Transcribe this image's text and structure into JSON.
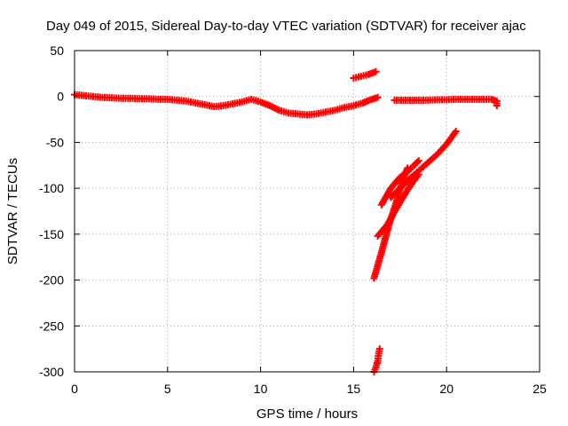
{
  "chart_data": {
    "type": "scatter",
    "title": "Day 049 of 2015, Sidereal Day-to-day VTEC variation (SDTVAR) for receiver ajac",
    "xlabel": "GPS time / hours",
    "ylabel": "SDTVAR / TECUs",
    "xlim": [
      0,
      25
    ],
    "ylim": [
      -300,
      50
    ],
    "xticks": [
      0,
      5,
      10,
      15,
      20,
      25
    ],
    "yticks": [
      -300,
      -250,
      -200,
      -150,
      -100,
      -50,
      0,
      50
    ],
    "grid": true,
    "marker": "plus",
    "color": "#ff0000",
    "series": [
      {
        "points": [
          [
            0,
            2
          ],
          [
            0.5,
            1
          ],
          [
            1,
            0
          ],
          [
            1.5,
            -1
          ],
          [
            2,
            -1.5
          ],
          [
            2.5,
            -2
          ],
          [
            3,
            -2
          ],
          [
            3.5,
            -2.5
          ],
          [
            4,
            -2.5
          ],
          [
            4.5,
            -3
          ],
          [
            5,
            -3
          ],
          [
            5.5,
            -4
          ],
          [
            6,
            -5
          ],
          [
            6.5,
            -7
          ],
          [
            7,
            -9
          ],
          [
            7.5,
            -11
          ],
          [
            8,
            -10
          ],
          [
            8.5,
            -8
          ],
          [
            9,
            -6
          ],
          [
            9.5,
            -3
          ],
          [
            10,
            -6
          ],
          [
            10.5,
            -10
          ],
          [
            11,
            -15
          ],
          [
            11.5,
            -18
          ],
          [
            12,
            -19
          ],
          [
            12.5,
            -20
          ],
          [
            13,
            -19
          ],
          [
            13.5,
            -17
          ],
          [
            14,
            -15
          ],
          [
            14.5,
            -12
          ],
          [
            15,
            -10
          ],
          [
            15.5,
            -7
          ],
          [
            16,
            -3
          ],
          [
            16.3,
            -1
          ]
        ]
      },
      {
        "points": [
          [
            15.0,
            20
          ],
          [
            15.4,
            22
          ],
          [
            15.8,
            24
          ],
          [
            16.2,
            27
          ]
        ]
      },
      {
        "points": [
          [
            17.2,
            -4
          ],
          [
            17.8,
            -4
          ],
          [
            18.5,
            -4
          ],
          [
            19,
            -4
          ],
          [
            19.5,
            -3.5
          ],
          [
            20,
            -3.5
          ],
          [
            20.5,
            -3
          ],
          [
            21,
            -3
          ],
          [
            21.5,
            -3
          ],
          [
            22,
            -3
          ],
          [
            22.4,
            -3
          ],
          [
            22.7,
            -5
          ],
          [
            22.7,
            -10
          ]
        ]
      },
      {
        "points": [
          [
            16.3,
            -152
          ],
          [
            16.8,
            -140
          ],
          [
            17.3,
            -122
          ],
          [
            17.8,
            -105
          ],
          [
            18.2,
            -93
          ],
          [
            18.5,
            -85
          ]
        ]
      },
      {
        "points": [
          [
            16.5,
            -118
          ],
          [
            17.0,
            -100
          ],
          [
            17.5,
            -88
          ],
          [
            18.0,
            -80
          ],
          [
            18.5,
            -70
          ]
        ]
      },
      {
        "points": [
          [
            17.0,
            -110
          ],
          [
            18.0,
            -90
          ],
          [
            19.0,
            -72
          ],
          [
            19.5,
            -63
          ],
          [
            20.0,
            -52
          ],
          [
            20.5,
            -38
          ]
        ]
      },
      {
        "points": [
          [
            16.1,
            -198
          ],
          [
            16.5,
            -170
          ],
          [
            16.9,
            -140
          ],
          [
            17.3,
            -115
          ],
          [
            17.5,
            -100
          ],
          [
            17.7,
            -88
          ],
          [
            17.9,
            -78
          ]
        ]
      },
      {
        "points": [
          [
            16.1,
            -300
          ],
          [
            16.2,
            -295
          ],
          [
            16.3,
            -288
          ],
          [
            16.35,
            -280
          ],
          [
            16.4,
            -275
          ]
        ]
      }
    ]
  }
}
